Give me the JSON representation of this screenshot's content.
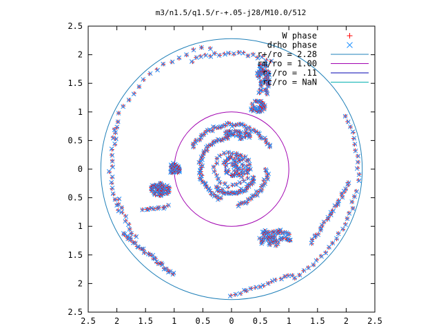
{
  "chart_data": {
    "type": "scatter",
    "title": "m3/n1.5/q1.5/r-+.05-j28/M10.0/512",
    "xlim": [
      -2.5,
      2.5
    ],
    "ylim": [
      -2.5,
      2.5
    ],
    "x_ticks": [
      -2.5,
      -2,
      -1.5,
      -1,
      -0.5,
      0,
      0.5,
      1,
      1.5,
      2,
      2.5
    ],
    "x_tick_labels": [
      "2.5",
      "2",
      "1.5",
      "1",
      "0.5",
      "0",
      "0.5",
      "1",
      "1.5",
      "2",
      "2.5"
    ],
    "y_ticks": [
      2.5,
      2,
      1.5,
      1,
      0.5,
      0,
      -0.5,
      -1,
      -1.5,
      -2,
      -2.5
    ],
    "y_tick_labels": [
      "2.5",
      "2",
      "1.5",
      "1",
      "0.5",
      "0",
      "0.5",
      "1",
      "1.5",
      "2",
      "2.5"
    ],
    "grid": false,
    "legend_placement": "top-right",
    "series": [
      {
        "name": "W phase",
        "marker": "plus",
        "color": "#ff0000",
        "style": "points"
      },
      {
        "name": "drho phase",
        "marker": "cross",
        "color": "#1e90ff",
        "style": "points"
      },
      {
        "name": "r+/ro = 2.28",
        "style": "circle",
        "radius": 2.28,
        "color": "#1e7fb8"
      },
      {
        "name": "rm/ro = 1.00",
        "style": "circle",
        "radius": 1.0,
        "color": "#a000b0"
      },
      {
        "name": "r-/ro = .11",
        "style": "circle",
        "radius": 0.11,
        "color": "#0000b0"
      },
      {
        "name": "rc/ro = NaN",
        "style": "circle",
        "radius": null,
        "color": "#00b0b0"
      }
    ],
    "point_groups": [
      {
        "shape": "arc",
        "r": 2.17,
        "a0": 100,
        "a1": 165,
        "n": 18
      },
      {
        "shape": "arc",
        "r": 2.02,
        "a0": 70,
        "a1": 110,
        "n": 18
      },
      {
        "shape": "arc",
        "r": 2.1,
        "a0": 160,
        "a1": 200,
        "n": 16
      },
      {
        "shape": "arc",
        "r": 2.05,
        "a0": 195,
        "a1": 215,
        "n": 10
      },
      {
        "shape": "arc",
        "r": 2.2,
        "a0": 300,
        "a1": 350,
        "n": 20
      },
      {
        "shape": "arc",
        "r": 2.2,
        "a0": 355,
        "a1": 385,
        "n": 12
      },
      {
        "shape": "arc",
        "r": 0.78,
        "a0": 30,
        "a1": 150,
        "n": 40
      },
      {
        "shape": "arc",
        "r": 0.55,
        "a0": 100,
        "a1": 250,
        "n": 40
      },
      {
        "shape": "arc",
        "r": 0.42,
        "a0": 230,
        "a1": 340,
        "n": 30
      },
      {
        "shape": "arc",
        "r": 0.62,
        "a0": 280,
        "a1": 360,
        "n": 22
      },
      {
        "shape": "arc",
        "r": 0.3,
        "a0": 0,
        "a1": 360,
        "n": 26
      },
      {
        "shape": "cluster",
        "cx": -1.25,
        "cy": -0.35,
        "rx": 0.18,
        "ry": 0.12,
        "n": 55
      },
      {
        "shape": "cluster",
        "cx": -1.0,
        "cy": 0.0,
        "rx": 0.1,
        "ry": 0.1,
        "n": 35
      },
      {
        "shape": "cluster",
        "cx": 0.55,
        "cy": 1.55,
        "rx": 0.12,
        "ry": 0.3,
        "n": 50
      },
      {
        "shape": "cluster",
        "cx": 0.45,
        "cy": 1.1,
        "rx": 0.15,
        "ry": 0.1,
        "n": 30
      },
      {
        "shape": "cluster",
        "cx": 0.75,
        "cy": -1.2,
        "rx": 0.3,
        "ry": 0.15,
        "n": 55
      },
      {
        "shape": "cluster",
        "cx": 0.1,
        "cy": 0.05,
        "rx": 0.25,
        "ry": 0.2,
        "n": 45
      },
      {
        "shape": "cluster",
        "cx": 0.1,
        "cy": 0.6,
        "rx": 0.3,
        "ry": 0.08,
        "n": 30
      },
      {
        "shape": "line",
        "x0": -1.9,
        "y0": -1.12,
        "x1": -1.0,
        "y1": -1.85,
        "n": 28
      },
      {
        "shape": "line",
        "x0": -1.55,
        "y0": -0.72,
        "x1": -1.1,
        "y1": -0.65,
        "n": 10
      },
      {
        "shape": "line",
        "x0": 1.4,
        "y0": -1.3,
        "x1": 2.05,
        "y1": -0.25,
        "n": 24
      },
      {
        "shape": "line",
        "x0": 0.0,
        "y0": -2.2,
        "x1": 1.05,
        "y1": -1.85,
        "n": 16
      }
    ]
  }
}
